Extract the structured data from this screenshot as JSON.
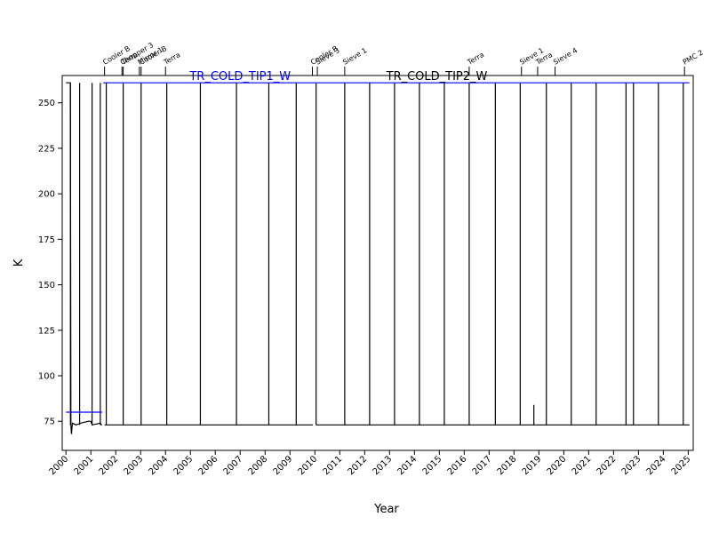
{
  "chart_data": {
    "type": "line",
    "title": "",
    "xlabel": "Year",
    "ylabel": "K",
    "xlim": [
      1999.85,
      2025.2
    ],
    "ylim": [
      59,
      265
    ],
    "grid": false,
    "x_ticks": [
      "2000",
      "2001",
      "2002",
      "2003",
      "2004",
      "2005",
      "2006",
      "2007",
      "2008",
      "2009",
      "2010",
      "2011",
      "2012",
      "2013",
      "2014",
      "2015",
      "2016",
      "2017",
      "2018",
      "2019",
      "2020",
      "2021",
      "2022",
      "2023",
      "2024",
      "2025"
    ],
    "y_ticks": [
      "75",
      "100",
      "125",
      "150",
      "175",
      "200",
      "225",
      "250"
    ],
    "event_markers": [
      {
        "x": 2001.55,
        "label": "Cooler B"
      },
      {
        "x": 2002.25,
        "label": "Chopper 3"
      },
      {
        "x": 2002.3,
        "label": "Terra"
      },
      {
        "x": 2002.95,
        "label": "Mirror 1"
      },
      {
        "x": 2003.02,
        "label": "Cooler B"
      },
      {
        "x": 2004.0,
        "label": "Terra"
      },
      {
        "x": 2009.9,
        "label": "Cooler B"
      },
      {
        "x": 2010.1,
        "label": "Sieve 3"
      },
      {
        "x": 2011.2,
        "label": "Sieve 1"
      },
      {
        "x": 2016.2,
        "label": "Terra"
      },
      {
        "x": 2018.3,
        "label": "Sieve 1"
      },
      {
        "x": 2018.95,
        "label": "Terra"
      },
      {
        "x": 2019.65,
        "label": "Sieve 4"
      },
      {
        "x": 2024.85,
        "label": "PMC 2"
      }
    ],
    "series": [
      {
        "name": "TR_COLD_TIP1_W",
        "color": "#0000ff",
        "segments": [
          [
            [
              2000.0,
              80
            ],
            [
              2001.45,
              80
            ]
          ],
          [
            [
              2001.5,
              261
            ],
            [
              2025.05,
              261
            ]
          ]
        ]
      },
      {
        "name": "TR_COLD_TIP2_W",
        "color": "#000000",
        "segments": [
          [
            [
              2000.0,
              261
            ],
            [
              2000.18,
              261
            ],
            [
              2000.2,
              73
            ],
            [
              2000.22,
              68
            ],
            [
              2000.26,
              74
            ],
            [
              2000.4,
              73
            ],
            [
              2000.6,
              74
            ],
            [
              2000.9,
              75
            ],
            [
              2001.0,
              75
            ],
            [
              2001.05,
              73
            ],
            [
              2001.38,
              74
            ],
            [
              2001.42,
              73
            ],
            [
              2001.45,
              73
            ]
          ],
          [
            [
              2001.55,
              73
            ],
            [
              2009.92,
              73
            ]
          ],
          [
            [
              2010.05,
              73
            ],
            [
              2025.05,
              73
            ]
          ]
        ],
        "spikes": [
          2000.18,
          2000.55,
          2001.05,
          2001.38,
          2001.62,
          2002.3,
          2003.02,
          2004.05,
          2005.4,
          2006.85,
          2008.15,
          2009.25,
          2010.05,
          2011.2,
          2012.2,
          2013.2,
          2014.2,
          2015.2,
          2016.2,
          2017.25,
          2018.25,
          2019.3,
          2020.3,
          2021.3,
          2022.5,
          2022.8,
          2023.8,
          2024.8
        ],
        "spike_top": 261,
        "extra_points": [
          [
            2018.8,
            73
          ],
          [
            2018.8,
            84
          ]
        ]
      }
    ]
  }
}
